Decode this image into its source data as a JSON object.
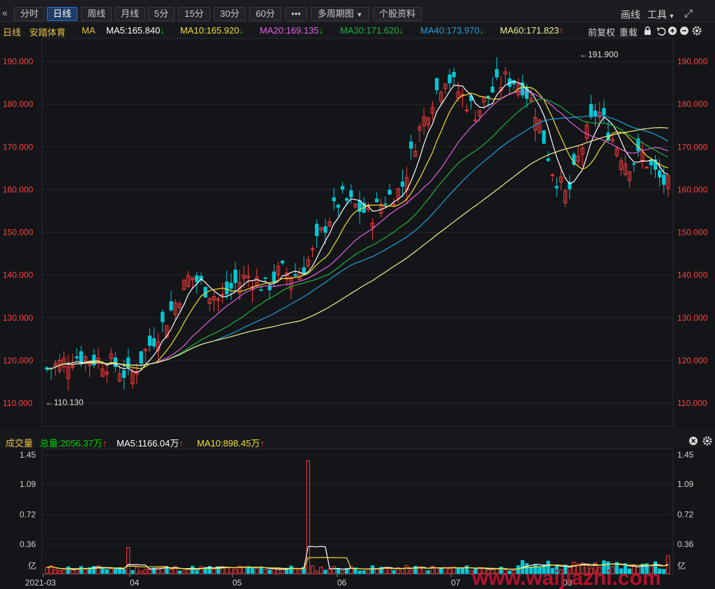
{
  "toolbar": {
    "collapse_icon": "double-chevron-left-icon",
    "tabs": [
      "分时",
      "日线",
      "周线",
      "月线",
      "5分",
      "15分",
      "30分",
      "60分",
      "•••"
    ],
    "active_tab": "日线",
    "multi_period": "多周期图",
    "stock_info": "个股资料",
    "draw_label": "画线",
    "tools_label": "工具",
    "fullscreen_icon": "expand-icon"
  },
  "indicator": {
    "period": "日线",
    "stock_name": "安踏体育",
    "ma_label": "MA",
    "ma5": "MA5:165.840",
    "ma10": "MA10:165.920",
    "ma20": "MA20:169.135",
    "ma30": "MA30:171.620",
    "ma40": "MA40:173.970",
    "ma60": "MA60:171.823",
    "fq_label": "前复权",
    "reload_label": "重载"
  },
  "price_axis": [
    "190.000",
    "180.000",
    "170.000",
    "160.000",
    "150.000",
    "140.000",
    "130.000",
    "120.000",
    "110.000"
  ],
  "annotations": {
    "high": "191.900",
    "low": "110.130"
  },
  "volume": {
    "label": "成交量",
    "total": "总量:2056.37万",
    "ma5": "MA5:1166.04万",
    "ma10": "MA10:898.45万",
    "axis": [
      "1.45",
      "1.09",
      "0.72",
      "0.36"
    ],
    "unit": "亿"
  },
  "dates": [
    "2021-03",
    "04",
    "05",
    "06",
    "07",
    "08"
  ],
  "watermark": "www.waijiazhi.com",
  "colors": {
    "up": "#ff3b3b",
    "down": "#00c8d8",
    "ma5": "#ffffff",
    "ma10": "#f0e030",
    "ma20": "#e060e0",
    "ma30": "#20b040",
    "ma40": "#1ea0e0",
    "ma60": "#f0f090"
  }
}
